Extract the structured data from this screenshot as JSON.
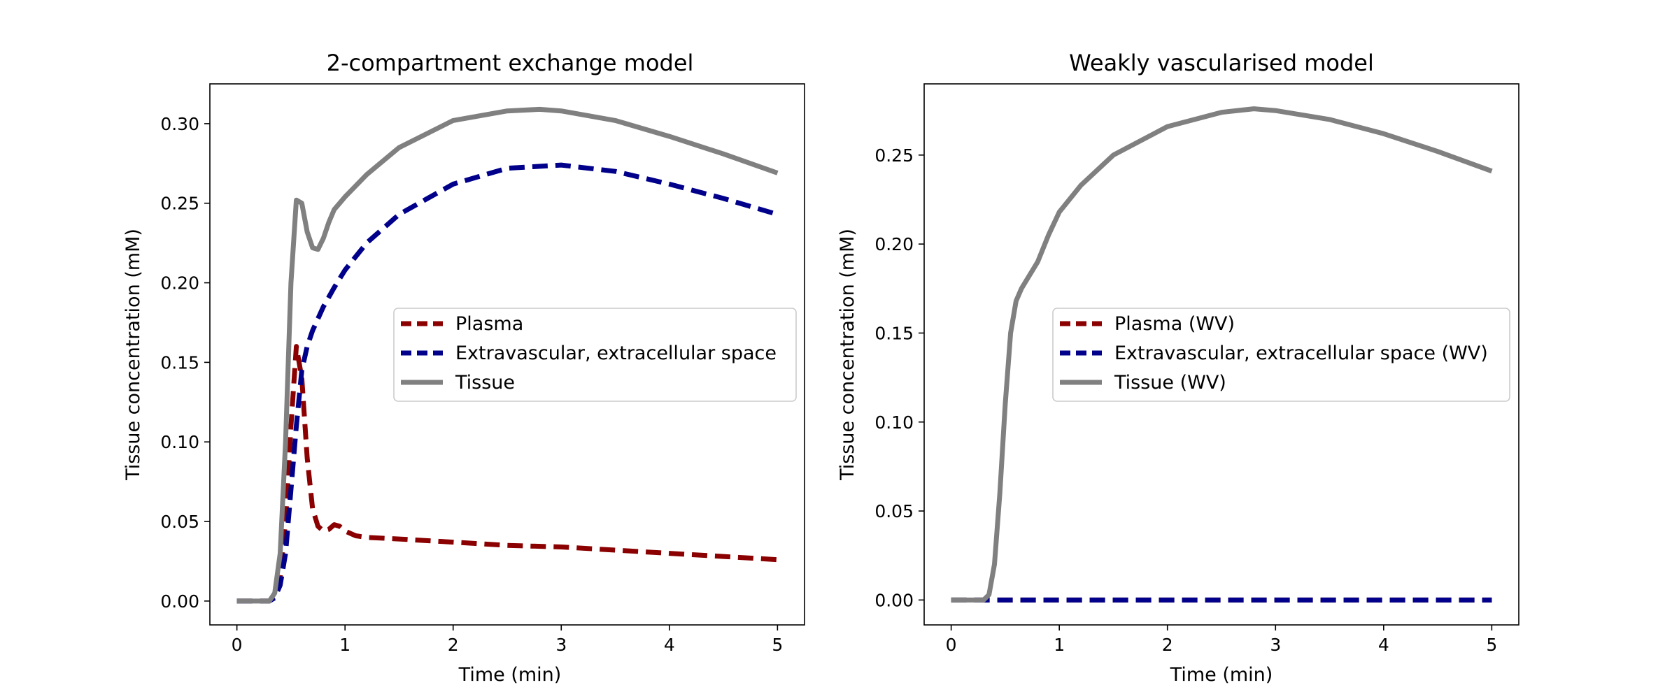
{
  "chart_data": [
    {
      "type": "line",
      "title": "2-compartment exchange model",
      "xlabel": "Time (min)",
      "ylabel": "Tissue concentration (mM)",
      "xlim": [
        -0.25,
        5.25
      ],
      "ylim": [
        -0.015,
        0.325
      ],
      "xticks": [
        0,
        1,
        2,
        3,
        4,
        5
      ],
      "xtick_labels": [
        "0",
        "1",
        "2",
        "3",
        "4",
        "5"
      ],
      "yticks": [
        0.0,
        0.05,
        0.1,
        0.15,
        0.2,
        0.25,
        0.3
      ],
      "ytick_labels": [
        "0.00",
        "0.05",
        "0.10",
        "0.15",
        "0.20",
        "0.25",
        "0.30"
      ],
      "grid": false,
      "legend_position": "center-right",
      "series": [
        {
          "name": "Plasma",
          "color": "#8b0000",
          "style": "dashed",
          "x": [
            0,
            0.3,
            0.35,
            0.4,
            0.45,
            0.5,
            0.55,
            0.6,
            0.65,
            0.7,
            0.75,
            0.8,
            0.85,
            0.9,
            0.95,
            1.0,
            1.1,
            1.2,
            1.5,
            2,
            2.5,
            3,
            3.5,
            4,
            4.5,
            5
          ],
          "y": [
            0,
            0,
            0.003,
            0.015,
            0.05,
            0.11,
            0.16,
            0.14,
            0.09,
            0.058,
            0.047,
            0.044,
            0.045,
            0.048,
            0.047,
            0.044,
            0.041,
            0.04,
            0.039,
            0.037,
            0.035,
            0.034,
            0.032,
            0.03,
            0.028,
            0.026
          ]
        },
        {
          "name": "Extravascular, extracellular space",
          "color": "#00008b",
          "style": "dashed",
          "x": [
            0,
            0.3,
            0.35,
            0.4,
            0.45,
            0.5,
            0.55,
            0.6,
            0.65,
            0.7,
            0.8,
            0.9,
            1.0,
            1.2,
            1.5,
            2,
            2.5,
            3,
            3.5,
            4,
            4.5,
            5
          ],
          "y": [
            0,
            0,
            0.002,
            0.01,
            0.03,
            0.07,
            0.11,
            0.145,
            0.16,
            0.17,
            0.185,
            0.197,
            0.208,
            0.225,
            0.243,
            0.262,
            0.272,
            0.274,
            0.27,
            0.262,
            0.253,
            0.243
          ]
        },
        {
          "name": "Tissue",
          "color": "#808080",
          "style": "solid",
          "x": [
            0,
            0.3,
            0.35,
            0.4,
            0.45,
            0.5,
            0.55,
            0.6,
            0.65,
            0.7,
            0.75,
            0.8,
            0.85,
            0.9,
            0.95,
            1.0,
            1.2,
            1.5,
            2,
            2.5,
            2.8,
            3,
            3.5,
            4,
            4.5,
            5
          ],
          "y": [
            0,
            0,
            0.005,
            0.03,
            0.1,
            0.2,
            0.252,
            0.25,
            0.232,
            0.222,
            0.221,
            0.228,
            0.238,
            0.246,
            0.25,
            0.254,
            0.268,
            0.285,
            0.302,
            0.308,
            0.309,
            0.308,
            0.302,
            0.292,
            0.281,
            0.269
          ]
        }
      ]
    },
    {
      "type": "line",
      "title": "Weakly vascularised model",
      "xlabel": "Time (min)",
      "ylabel": "Tissue concentration (mM)",
      "xlim": [
        -0.25,
        5.25
      ],
      "ylim": [
        -0.014,
        0.29
      ],
      "xticks": [
        0,
        1,
        2,
        3,
        4,
        5
      ],
      "xtick_labels": [
        "0",
        "1",
        "2",
        "3",
        "4",
        "5"
      ],
      "yticks": [
        0.0,
        0.05,
        0.1,
        0.15,
        0.2,
        0.25
      ],
      "ytick_labels": [
        "0.00",
        "0.05",
        "0.10",
        "0.15",
        "0.20",
        "0.25"
      ],
      "grid": false,
      "legend_position": "center-right",
      "series": [
        {
          "name": "Plasma (WV)",
          "color": "#8b0000",
          "style": "dashed",
          "x": [
            0,
            5
          ],
          "y": [
            0,
            0
          ]
        },
        {
          "name": "Extravascular, extracellular space (WV)",
          "color": "#00008b",
          "style": "dashed",
          "x": [
            0,
            5
          ],
          "y": [
            0,
            0
          ]
        },
        {
          "name": "Tissue (WV)",
          "color": "#808080",
          "style": "solid",
          "x": [
            0,
            0.3,
            0.35,
            0.4,
            0.45,
            0.5,
            0.55,
            0.6,
            0.65,
            0.7,
            0.8,
            0.9,
            1.0,
            1.2,
            1.5,
            2,
            2.5,
            2.8,
            3,
            3.5,
            4,
            4.5,
            5
          ],
          "y": [
            0,
            0,
            0.003,
            0.02,
            0.06,
            0.11,
            0.15,
            0.168,
            0.175,
            0.18,
            0.19,
            0.205,
            0.218,
            0.233,
            0.25,
            0.266,
            0.274,
            0.276,
            0.275,
            0.27,
            0.262,
            0.252,
            0.241
          ]
        }
      ]
    }
  ]
}
